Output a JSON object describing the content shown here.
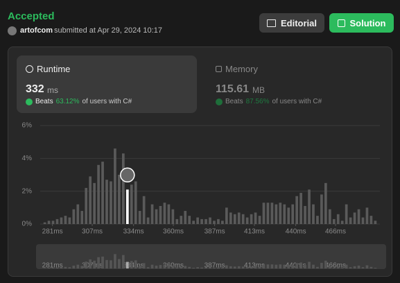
{
  "header": {
    "status": "Accepted",
    "user": "artofcom",
    "submitted": "submitted at Apr 29, 2024 10:17",
    "buttons": [
      "Editorial",
      "Solution"
    ]
  },
  "runtime": {
    "label": "Runtime",
    "value": "332",
    "unit": "ms",
    "beats": "Beats",
    "percent": "63.12%",
    "suffix": "of users with C#"
  },
  "memory": {
    "label": "Memory",
    "value": "115.61",
    "unit": "MB",
    "beats": "Beats",
    "percent": "87.56%",
    "suffix": "of users with C#"
  },
  "chart_data": {
    "type": "histogram",
    "color": "#5a5a5a",
    "highlight_color": "#ffffff",
    "highlight_index": 20,
    "grid": true,
    "x": [
      276.0,
      278.7,
      281.4,
      284.1,
      286.8,
      289.5,
      292.2,
      294.9,
      297.6,
      300.3,
      303.0,
      305.7,
      308.4,
      311.1,
      313.8,
      316.5,
      319.2,
      321.9,
      324.6,
      327.3,
      330.0,
      332.7,
      335.4,
      338.1,
      340.8,
      343.5,
      346.2,
      348.9,
      351.6,
      354.3,
      357.0,
      359.7,
      362.4,
      365.1,
      367.8,
      370.5,
      373.2,
      375.9,
      378.6,
      381.3,
      384.0,
      386.7,
      389.4,
      392.1,
      394.8,
      397.5,
      400.2,
      402.9,
      405.6,
      408.3,
      411.0,
      413.7,
      416.4,
      419.1,
      421.8,
      424.5,
      427.2,
      429.9,
      432.6,
      435.3,
      438.0,
      440.7,
      443.4,
      446.1,
      448.8,
      451.5,
      454.2,
      456.9,
      459.6,
      462.3,
      465.0,
      467.7,
      470.4,
      473.1,
      475.8,
      478.5,
      481.2,
      483.9,
      486.6,
      489.3,
      492.0
    ],
    "values": [
      0.1,
      0.2,
      0.2,
      0.3,
      0.4,
      0.5,
      0.4,
      0.9,
      1.2,
      0.8,
      2.2,
      2.9,
      2.5,
      3.6,
      3.8,
      2.7,
      2.6,
      4.6,
      3.0,
      4.3,
      2.1,
      2.4,
      2.6,
      0.8,
      1.7,
      0.4,
      1.2,
      0.9,
      1.1,
      1.3,
      1.2,
      0.9,
      0.3,
      0.5,
      0.8,
      0.5,
      0.2,
      0.4,
      0.3,
      0.3,
      0.4,
      0.2,
      0.3,
      0.2,
      1.0,
      0.7,
      0.6,
      0.7,
      0.6,
      0.4,
      0.6,
      0.7,
      0.5,
      1.3,
      1.3,
      1.3,
      1.2,
      1.3,
      1.2,
      1.0,
      1.2,
      1.7,
      1.9,
      1.1,
      2.1,
      1.2,
      0.5,
      1.8,
      2.5,
      0.9,
      0.3,
      0.6,
      0.2,
      1.2,
      0.4,
      0.7,
      0.9,
      0.4,
      1.0,
      0.5,
      0.2
    ],
    "xlim": [
      273,
      495
    ],
    "ylim": [
      0,
      6
    ],
    "xticks": [
      {
        "value": 281,
        "label": "281ms"
      },
      {
        "value": 307,
        "label": "307ms"
      },
      {
        "value": 334,
        "label": "334ms"
      },
      {
        "value": 360,
        "label": "360ms"
      },
      {
        "value": 387,
        "label": "387ms"
      },
      {
        "value": 413,
        "label": "413ms"
      },
      {
        "value": 440,
        "label": "440ms"
      },
      {
        "value": 466,
        "label": "466ms"
      }
    ],
    "yticks": [
      {
        "value": 0,
        "label": "0%"
      },
      {
        "value": 2,
        "label": "2%"
      },
      {
        "value": 4,
        "label": "4%"
      },
      {
        "value": 6,
        "label": "6%"
      }
    ]
  }
}
